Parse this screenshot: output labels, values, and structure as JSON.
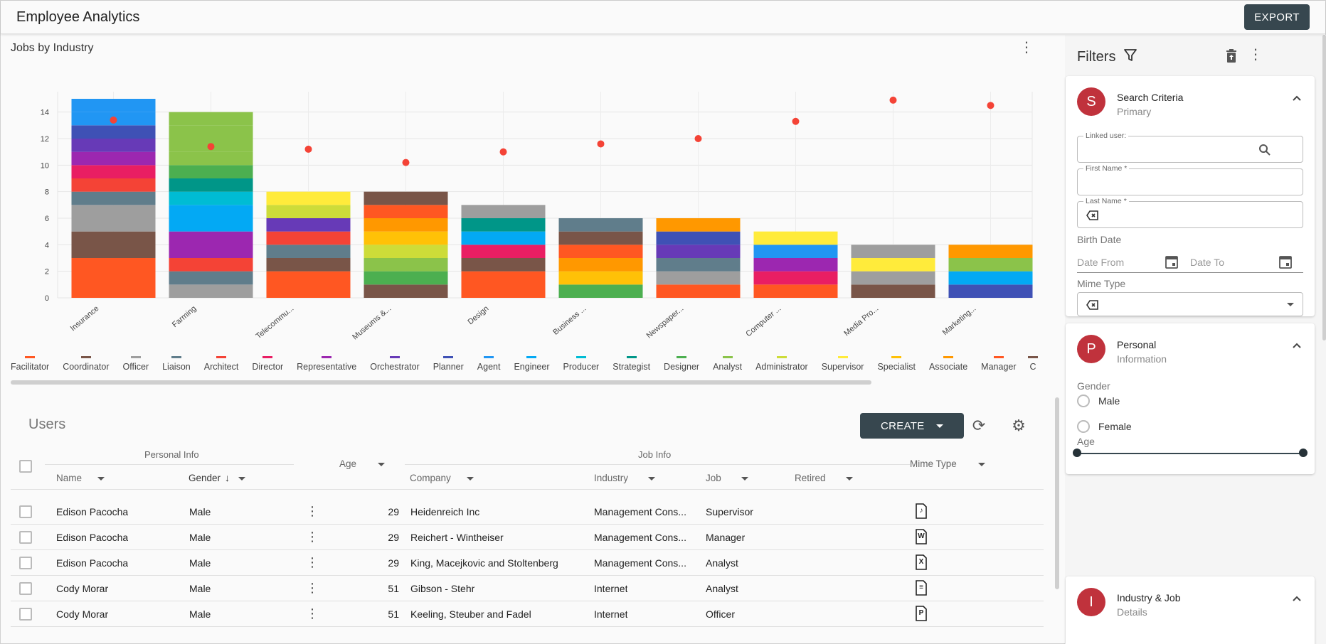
{
  "app": {
    "title": "Employee Analytics",
    "export_label": "EXPORT"
  },
  "chart_panel": {
    "title": "Jobs by Industry"
  },
  "chart_data": {
    "type": "bar",
    "stacked": true,
    "title": "Jobs by Industry",
    "categories": [
      "Insurance",
      "Farming",
      "Telecommu...",
      "Museums &...",
      "Design",
      "Business ...",
      "Newspaper...",
      "Computer ...",
      "Media Pro...",
      "Marketing..."
    ],
    "ylim": [
      0,
      15
    ],
    "yticks": [
      0,
      2,
      4,
      6,
      8,
      10,
      12,
      14
    ],
    "grid": true,
    "stacks": [
      [
        3,
        2,
        2,
        1,
        1,
        1,
        1,
        1,
        1,
        1,
        1
      ],
      [
        1,
        1,
        1,
        2,
        2,
        1,
        1,
        1,
        1,
        1,
        1,
        1
      ],
      [
        2,
        1,
        1,
        1,
        1,
        1,
        1
      ],
      [
        1,
        1,
        1,
        1,
        1,
        1,
        1,
        1
      ],
      [
        2,
        1,
        1,
        1,
        1,
        1
      ],
      [
        1,
        1,
        1,
        1,
        1,
        1
      ],
      [
        1,
        1,
        1,
        1,
        1,
        1
      ],
      [
        1,
        1,
        1,
        1,
        1
      ],
      [
        1,
        1,
        1,
        1
      ],
      [
        1,
        1,
        1,
        1
      ]
    ],
    "stack_colors": [
      [
        "#ff5722",
        "#795548",
        "#9e9e9e",
        "#607d8b",
        "#f44336",
        "#e91e63",
        "#9c27b0",
        "#673ab7",
        "#3f51b5",
        "#2196f3",
        "#2196f3"
      ],
      [
        "#9e9e9e",
        "#607d8b",
        "#f44336",
        "#9c27b0",
        "#03a9f4",
        "#00bcd4",
        "#009688",
        "#4caf50",
        "#8bc34a",
        "#8bc34a",
        "#8bc34a",
        "#8bc34a"
      ],
      [
        "#ff5722",
        "#795548",
        "#607d8b",
        "#f44336",
        "#673ab7",
        "#cddc39",
        "#ffeb3b"
      ],
      [
        "#795548",
        "#4caf50",
        "#8bc34a",
        "#cddc39",
        "#ffc107",
        "#ff9800",
        "#ff5722",
        "#795548"
      ],
      [
        "#ff5722",
        "#795548",
        "#e91e63",
        "#03a9f4",
        "#009688",
        "#9e9e9e"
      ],
      [
        "#4caf50",
        "#ffc107",
        "#ff9800",
        "#ff5722",
        "#795548",
        "#607d8b"
      ],
      [
        "#ff5722",
        "#9e9e9e",
        "#607d8b",
        "#673ab7",
        "#3f51b5",
        "#ff9800"
      ],
      [
        "#ff5722",
        "#e91e63",
        "#9c27b0",
        "#2196f3",
        "#ffeb3b"
      ],
      [
        "#795548",
        "#9e9e9e",
        "#ffeb3b",
        "#9e9e9e"
      ],
      [
        "#3f51b5",
        "#03a9f4",
        "#8bc34a",
        "#ff9800"
      ]
    ],
    "points": [
      13.4,
      11.4,
      11.2,
      10.2,
      11.0,
      11.6,
      12.0,
      13.3,
      14.9,
      14.5
    ],
    "point_color": "#f44336",
    "legend_placement": "bottom",
    "legend": [
      {
        "name": "Facilitator",
        "color": "#ff5722"
      },
      {
        "name": "Coordinator",
        "color": "#795548"
      },
      {
        "name": "Officer",
        "color": "#9e9e9e"
      },
      {
        "name": "Liaison",
        "color": "#607d8b"
      },
      {
        "name": "Architect",
        "color": "#f44336"
      },
      {
        "name": "Director",
        "color": "#e91e63"
      },
      {
        "name": "Representative",
        "color": "#9c27b0"
      },
      {
        "name": "Orchestrator",
        "color": "#673ab7"
      },
      {
        "name": "Planner",
        "color": "#3f51b5"
      },
      {
        "name": "Agent",
        "color": "#2196f3"
      },
      {
        "name": "Engineer",
        "color": "#03a9f4"
      },
      {
        "name": "Producer",
        "color": "#00bcd4"
      },
      {
        "name": "Strategist",
        "color": "#009688"
      },
      {
        "name": "Designer",
        "color": "#4caf50"
      },
      {
        "name": "Analyst",
        "color": "#8bc34a"
      },
      {
        "name": "Administrator",
        "color": "#cddc39"
      },
      {
        "name": "Supervisor",
        "color": "#ffeb3b"
      },
      {
        "name": "Specialist",
        "color": "#ffc107"
      },
      {
        "name": "Associate",
        "color": "#ff9800"
      },
      {
        "name": "Manager",
        "color": "#ff5722"
      },
      {
        "name": "C",
        "color": "#795548"
      }
    ]
  },
  "users": {
    "title": "Users",
    "create_label": "CREATE",
    "groups": {
      "personal": "Personal Info",
      "job": "Job Info"
    },
    "columns": {
      "name": "Name",
      "gender": "Gender",
      "age": "Age",
      "company": "Company",
      "industry": "Industry",
      "job": "Job",
      "retired": "Retired",
      "mime": "Mime Type"
    },
    "rows": [
      {
        "name": "Edison Pacocha",
        "gender": "Male",
        "age": "29",
        "company": "Heidenreich Inc",
        "industry": "Management Cons...",
        "job": "Supervisor",
        "mime_icon": "audio-file-icon",
        "mime_glyph": "♪"
      },
      {
        "name": "Edison Pacocha",
        "gender": "Male",
        "age": "29",
        "company": "Reichert - Wintheiser",
        "industry": "Management Cons...",
        "job": "Manager",
        "mime_icon": "word-file-icon",
        "mime_glyph": "W"
      },
      {
        "name": "Edison Pacocha",
        "gender": "Male",
        "age": "29",
        "company": "King, Macejkovic and Stoltenberg",
        "industry": "Management Cons...",
        "job": "Analyst",
        "mime_icon": "excel-file-icon",
        "mime_glyph": "X"
      },
      {
        "name": "Cody Morar",
        "gender": "Male",
        "age": "51",
        "company": "Gibson - Stehr",
        "industry": "Internet",
        "job": "Analyst",
        "mime_icon": "text-file-icon",
        "mime_glyph": "≡"
      },
      {
        "name": "Cody Morar",
        "gender": "Male",
        "age": "51",
        "company": "Keeling, Steuber and Fadel",
        "industry": "Internet",
        "job": "Officer",
        "mime_icon": "powerpoint-file-icon",
        "mime_glyph": "P"
      }
    ]
  },
  "filters": {
    "title": "Filters",
    "search": {
      "avatar": "S",
      "title": "Search Criteria",
      "subtitle": "Primary",
      "linked_user_label": "Linked user:",
      "first_name_label": "First Name *",
      "last_name_label": "Last Name *",
      "birth_date_label": "Birth Date",
      "date_from": "Date From",
      "date_to": "Date To",
      "mime_type_label": "Mime Type"
    },
    "personal": {
      "avatar": "P",
      "title": "Personal",
      "subtitle": "Information",
      "gender_label": "Gender",
      "male": "Male",
      "female": "Female",
      "age_label": "Age"
    },
    "industry": {
      "avatar": "I",
      "title": "Industry & Job",
      "subtitle": "Details"
    }
  }
}
